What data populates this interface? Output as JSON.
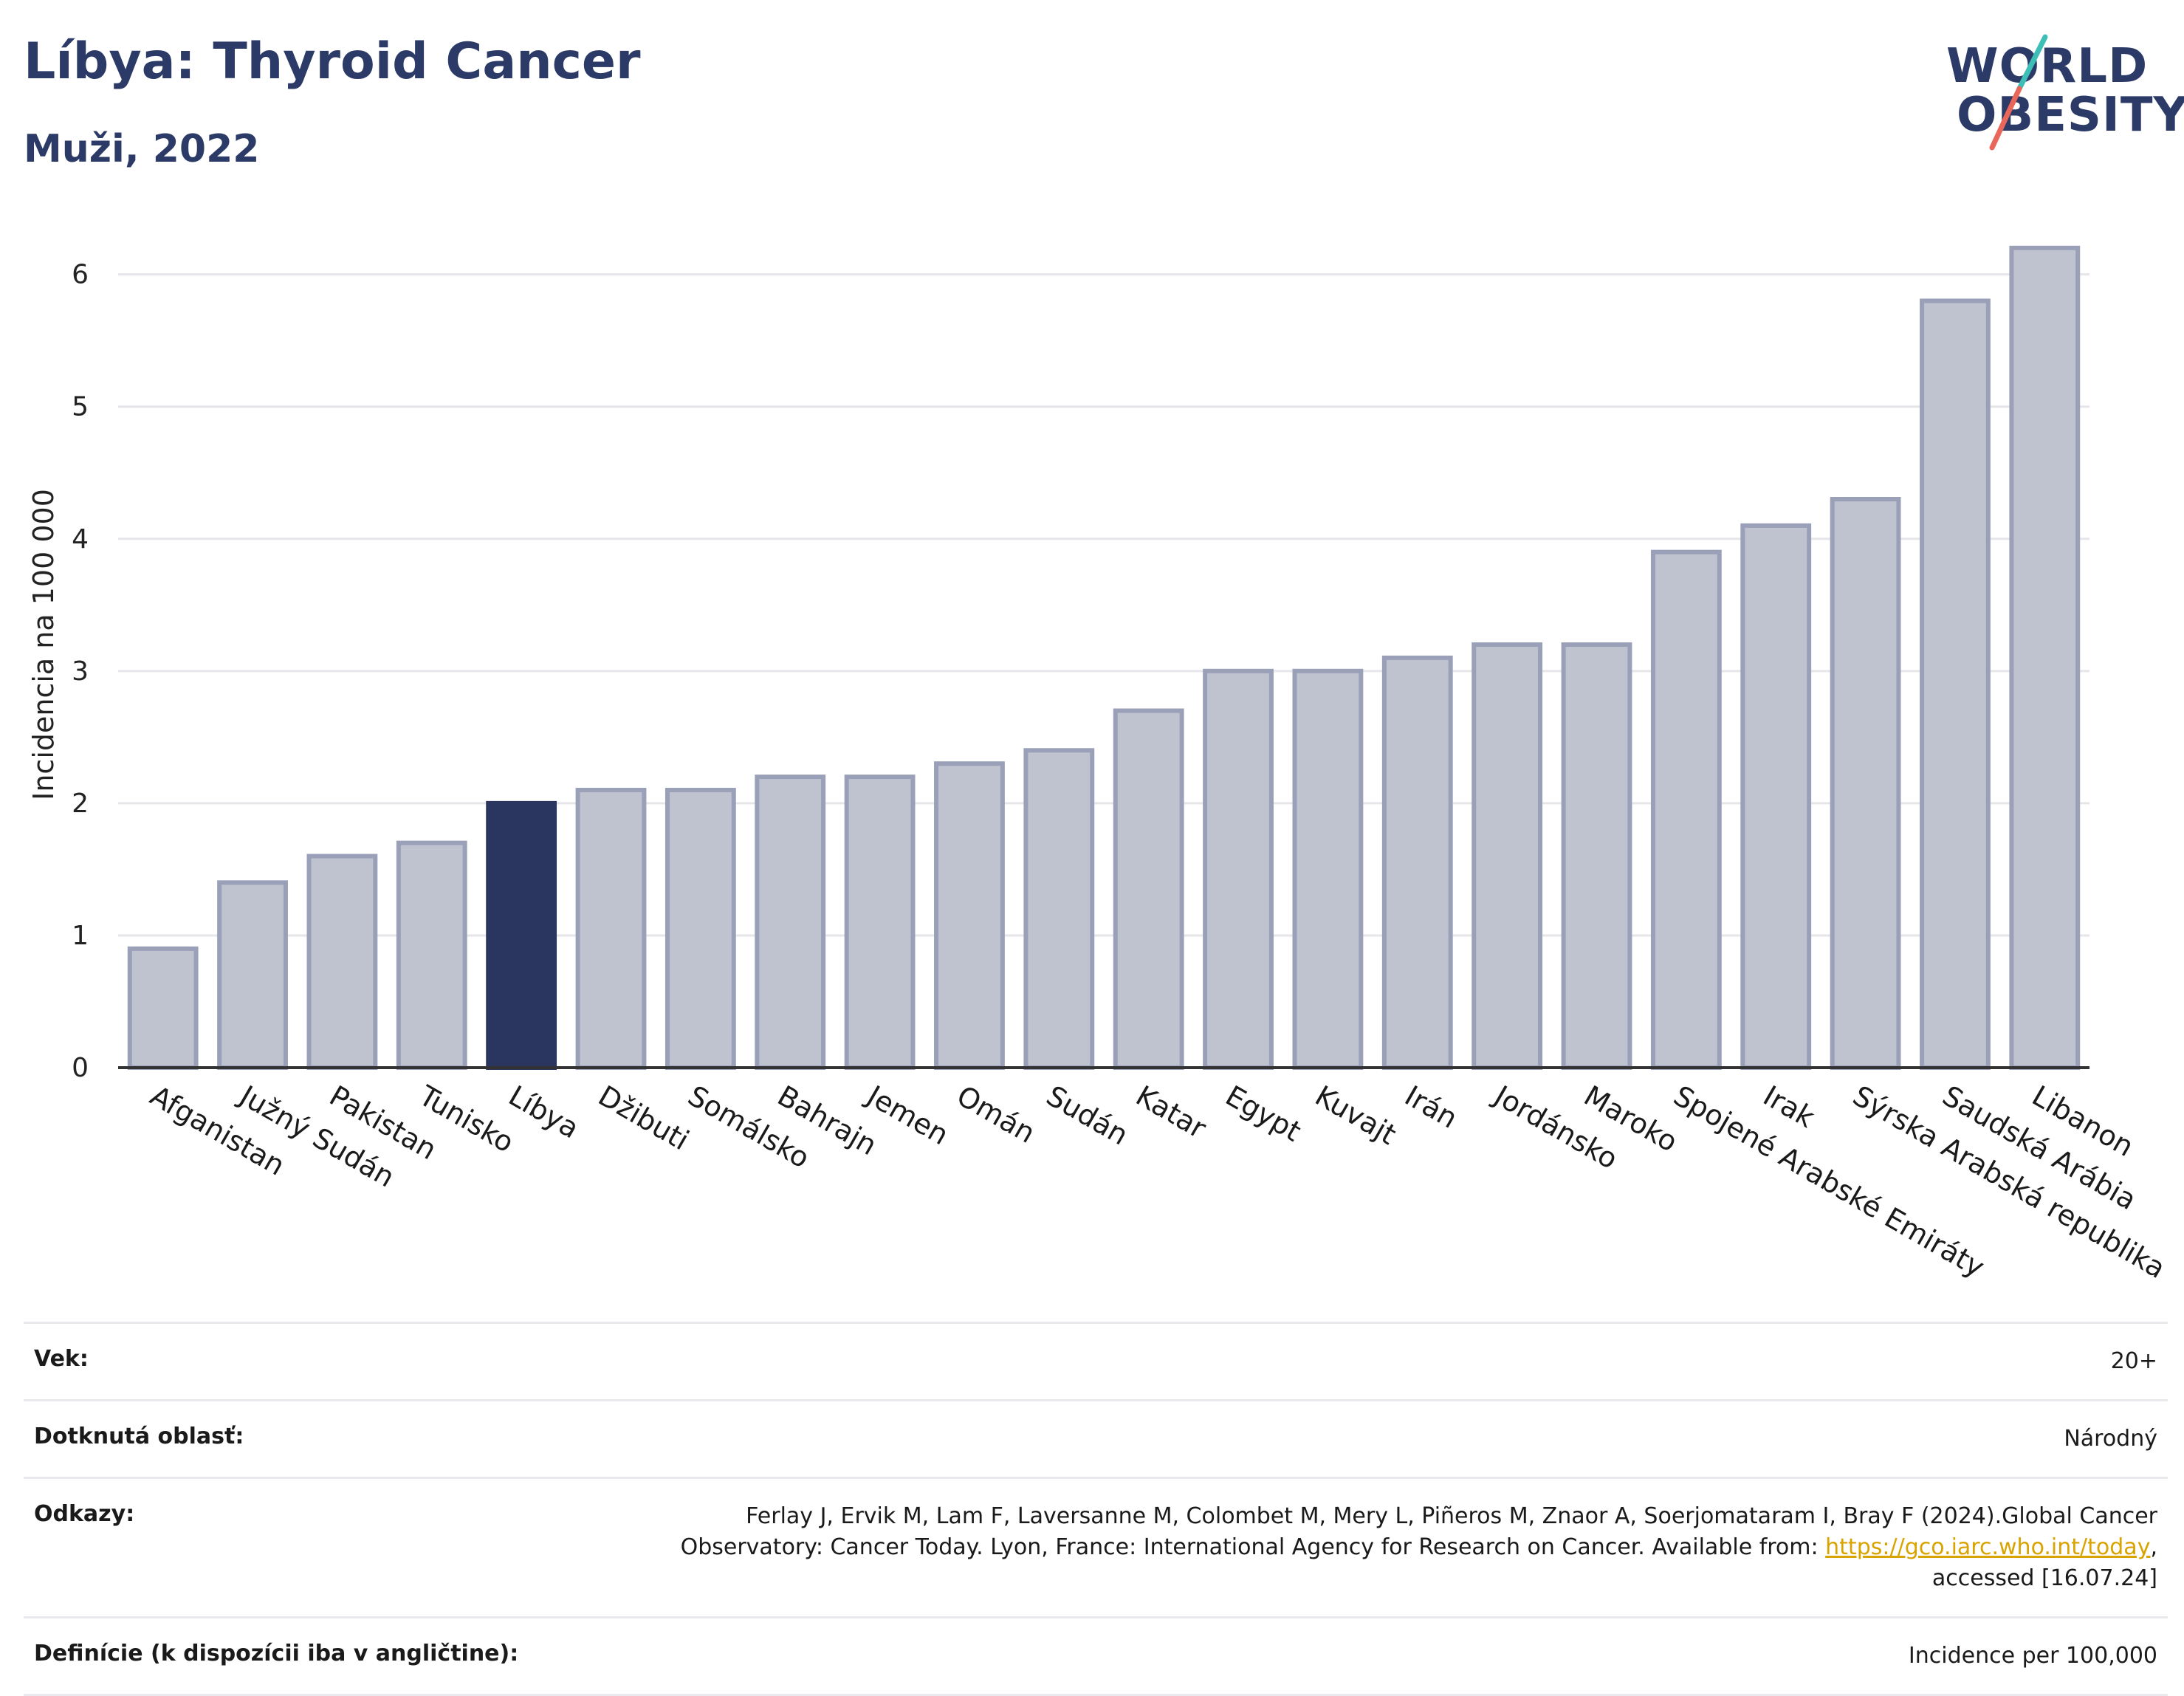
{
  "header": {
    "title": "Líbya: Thyroid Cancer",
    "subtitle": "Muži, 2022"
  },
  "logo": {
    "line1": "WORLD",
    "line2": "OBESITY",
    "accent_colors": [
      "#3dbfb8",
      "#e8665a"
    ]
  },
  "colors": {
    "highlight": "#2b3660",
    "bar_fill": "#bfc2cf",
    "bar_stroke": "#9aa0b8",
    "text_dark": "#2b3a67"
  },
  "chart_data": {
    "type": "bar",
    "title": "Líbya: Thyroid Cancer",
    "subtitle": "Muži, 2022",
    "xlabel": "",
    "ylabel": "Incidencia na 100 000",
    "ylim": [
      0,
      6.4
    ],
    "yticks": [
      0,
      1,
      2,
      3,
      4,
      5,
      6
    ],
    "grid": true,
    "highlight_category": "Líbya",
    "categories": [
      "Afganistan",
      "Južný Sudán",
      "Pakistan",
      "Tunisko",
      "Líbya",
      "Džibuti",
      "Somálsko",
      "Bahrajn",
      "Jemen",
      "Omán",
      "Sudán",
      "Katar",
      "Egypt",
      "Kuvajt",
      "Irán",
      "Jordánsko",
      "Maroko",
      "Spojené Arabské Emiráty",
      "Irak",
      "Sýrska Arabská republika",
      "Saudská Arábia",
      "Libanon"
    ],
    "values": [
      0.9,
      1.4,
      1.6,
      1.7,
      2.0,
      2.1,
      2.1,
      2.2,
      2.2,
      2.3,
      2.4,
      2.7,
      3.0,
      3.0,
      3.1,
      3.2,
      3.2,
      3.9,
      4.1,
      4.3,
      5.8,
      6.2
    ]
  },
  "meta": {
    "rows": [
      {
        "label": "Vek:",
        "value": "20+"
      },
      {
        "label": "Dotknutá oblasť:",
        "value": "Národný"
      },
      {
        "label": "Odkazy:",
        "value_line1": "Ferlay J, Ervik M, Lam F, Laversanne M, Colombet M, Mery L, Piñeros M, Znaor A, Soerjomataram I, Bray F (2024).Global Cancer",
        "value_line2_pre": "Observatory: Cancer Today. Lyon, France: International Agency for Research on Cancer. Available from: ",
        "link": "https://gco.iarc.who.int/today",
        "value_line2_post": ",",
        "value_line3": "accessed [16.07.24]"
      },
      {
        "label": "Definície (k dispozícii iba v angličtine):",
        "value": "Incidence per 100,000"
      }
    ]
  }
}
